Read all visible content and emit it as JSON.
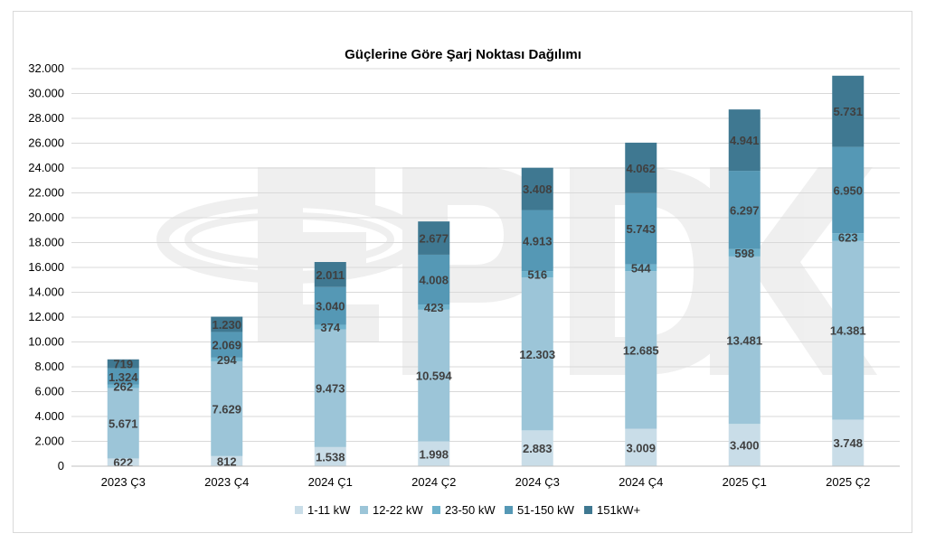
{
  "chart_data": {
    "type": "bar",
    "stacked": true,
    "title": "Güçlerine Göre Şarj Noktası Dağılımı",
    "xlabel": "",
    "ylabel": "",
    "ylim": [
      0,
      32000
    ],
    "yticks": [
      0,
      2000,
      4000,
      6000,
      8000,
      10000,
      12000,
      14000,
      16000,
      18000,
      20000,
      22000,
      24000,
      26000,
      28000,
      30000,
      32000
    ],
    "ytick_labels": [
      "0",
      "2.000",
      "4.000",
      "6.000",
      "8.000",
      "10.000",
      "12.000",
      "14.000",
      "16.000",
      "18.000",
      "20.000",
      "22.000",
      "24.000",
      "26.000",
      "28.000",
      "30.000",
      "32.000"
    ],
    "grid": true,
    "legend_position": "bottom",
    "categories": [
      "2023 Ç3",
      "2023 Ç4",
      "2024 Ç1",
      "2024 Ç2",
      "2024 Ç3",
      "2024 Ç4",
      "2025 Ç1",
      "2025 Ç2"
    ],
    "series": [
      {
        "name": "1-11 kW",
        "color": "#c9dde8",
        "values": [
          622,
          812,
          1538,
          1998,
          2883,
          3009,
          3400,
          3748
        ],
        "labels": [
          "622",
          "812",
          "1.538",
          "1.998",
          "2.883",
          "3.009",
          "3.400",
          "3.748"
        ]
      },
      {
        "name": "12-22 kW",
        "color": "#9cc5d8",
        "values": [
          5671,
          7629,
          9473,
          10594,
          12303,
          12685,
          13481,
          14381
        ],
        "labels": [
          "5.671",
          "7.629",
          "9.473",
          "10.594",
          "12.303",
          "12.685",
          "13.481",
          "14.381"
        ]
      },
      {
        "name": "23-50 kW",
        "color": "#6fb2cc",
        "values": [
          262,
          294,
          374,
          423,
          516,
          544,
          598,
          623
        ],
        "labels": [
          "262",
          "294",
          "374",
          "423",
          "516",
          "544",
          "598",
          "623"
        ]
      },
      {
        "name": "51-150 kW",
        "color": "#5598b5",
        "values": [
          1324,
          2069,
          3040,
          4008,
          4913,
          5743,
          6297,
          6950
        ],
        "labels": [
          "1.324",
          "2.069",
          "3.040",
          "4.008",
          "4.913",
          "5.743",
          "6.297",
          "6.950"
        ]
      },
      {
        "name": "151kW+",
        "color": "#3f7891",
        "values": [
          719,
          1230,
          2011,
          2677,
          3408,
          4062,
          4941,
          5731
        ],
        "labels": [
          "719",
          "1.230",
          "2.011",
          "2.677",
          "3.408",
          "4.062",
          "4.941",
          "5.731"
        ]
      }
    ]
  }
}
